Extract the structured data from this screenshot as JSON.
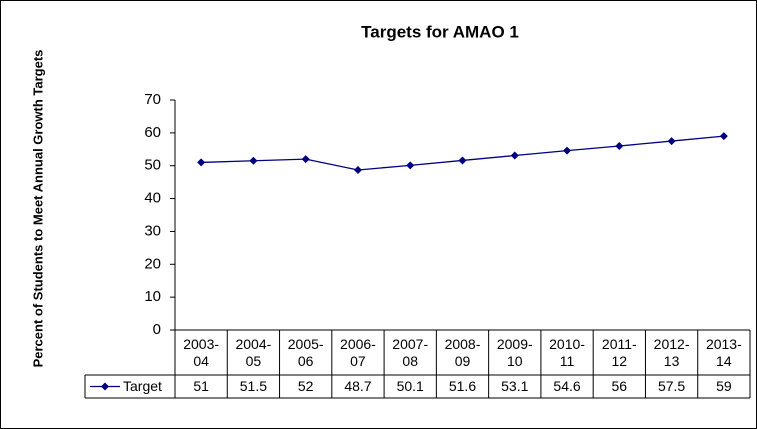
{
  "chart_data": {
    "type": "line",
    "title": "Targets for AMAO 1",
    "ylabel": "Percent of Students to Meet Annual Growth Targets",
    "categories": [
      "2003-04",
      "2004-05",
      "2005-06",
      "2006-07",
      "2007-08",
      "2008-09",
      "2009-10",
      "2010-11",
      "2011-12",
      "2012-13",
      "2013-14"
    ],
    "series": [
      {
        "name": "Target",
        "color": "#000080",
        "values": [
          51,
          51.5,
          52,
          48.7,
          50.1,
          51.6,
          53.1,
          54.6,
          56,
          57.5,
          59
        ]
      }
    ],
    "ylim": [
      0,
      70
    ],
    "yticks": [
      0,
      10,
      20,
      30,
      40,
      50,
      60,
      70
    ],
    "grid": false,
    "data_table": true
  }
}
